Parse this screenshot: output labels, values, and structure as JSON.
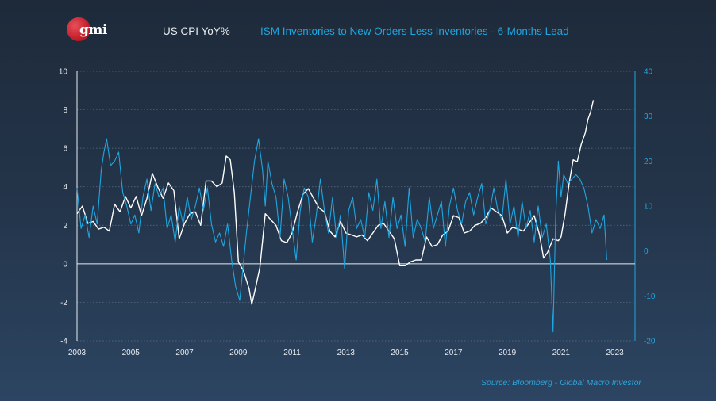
{
  "logo": {
    "text": "gmi"
  },
  "legend": {
    "cpi_label": "US CPI YoY%",
    "ism_label": "ISM Inventories to New Orders Less Inventories - 6-Months Lead"
  },
  "source": "Source: Bloomberg - Global Macro Investor",
  "colors": {
    "cpi": "#ffffff",
    "ism": "#1fa6e0",
    "grid": "#6f7f94",
    "axis_left": "#e8ecf0",
    "axis_right": "#1fa6e0"
  },
  "chart_data": {
    "type": "line",
    "title": "",
    "xlabel": "",
    "ylabel": "",
    "y2label": "",
    "x_ticks": [
      "2003",
      "2005",
      "2007",
      "2009",
      "2011",
      "2013",
      "2015",
      "2017",
      "2019",
      "2021",
      "2023"
    ],
    "xlim": [
      2003,
      2023.75
    ],
    "ylim": [
      -4,
      10
    ],
    "y_ticks": [
      "-4",
      "-2",
      "0",
      "2",
      "4",
      "6",
      "8",
      "10"
    ],
    "y2lim": [
      -20,
      40
    ],
    "y2_ticks": [
      "-20",
      "-10",
      "0",
      "10",
      "20",
      "30",
      "40"
    ],
    "grid": true,
    "legend_position": "top",
    "series": [
      {
        "name": "US CPI YoY%",
        "axis": "left",
        "x": [
          2003.0,
          2003.2,
          2003.4,
          2003.6,
          2003.8,
          2004.0,
          2004.2,
          2004.4,
          2004.6,
          2004.8,
          2005.0,
          2005.2,
          2005.4,
          2005.6,
          2005.8,
          2006.0,
          2006.2,
          2006.4,
          2006.6,
          2006.8,
          2007.0,
          2007.2,
          2007.4,
          2007.6,
          2007.8,
          2008.0,
          2008.2,
          2008.4,
          2008.55,
          2008.7,
          2008.85,
          2009.0,
          2009.2,
          2009.4,
          2009.5,
          2009.6,
          2009.8,
          2010.0,
          2010.2,
          2010.4,
          2010.6,
          2010.8,
          2011.0,
          2011.2,
          2011.4,
          2011.6,
          2011.8,
          2012.0,
          2012.2,
          2012.4,
          2012.6,
          2012.8,
          2013.0,
          2013.2,
          2013.4,
          2013.6,
          2013.8,
          2014.0,
          2014.2,
          2014.4,
          2014.6,
          2014.8,
          2015.0,
          2015.2,
          2015.4,
          2015.6,
          2015.8,
          2016.0,
          2016.2,
          2016.4,
          2016.6,
          2016.8,
          2017.0,
          2017.2,
          2017.4,
          2017.6,
          2017.8,
          2018.0,
          2018.2,
          2018.4,
          2018.6,
          2018.8,
          2019.0,
          2019.2,
          2019.4,
          2019.6,
          2019.8,
          2020.0,
          2020.2,
          2020.35,
          2020.5,
          2020.7,
          2020.9,
          2021.0,
          2021.15,
          2021.3,
          2021.45,
          2021.6,
          2021.75,
          2021.9,
          2022.0,
          2022.1,
          2022.2
        ],
        "values": [
          2.6,
          3.0,
          2.1,
          2.2,
          1.8,
          1.9,
          1.7,
          3.1,
          2.7,
          3.5,
          2.9,
          3.5,
          2.5,
          3.4,
          4.7,
          4.0,
          3.4,
          4.2,
          3.8,
          1.3,
          2.1,
          2.6,
          2.7,
          2.0,
          4.3,
          4.3,
          4.0,
          4.2,
          5.6,
          5.4,
          3.7,
          0.1,
          -0.4,
          -1.3,
          -2.1,
          -1.5,
          -0.2,
          2.6,
          2.3,
          2.0,
          1.2,
          1.1,
          1.6,
          2.7,
          3.6,
          3.9,
          3.4,
          2.9,
          2.7,
          1.7,
          1.4,
          2.2,
          1.6,
          1.5,
          1.4,
          1.5,
          1.2,
          1.6,
          2.0,
          2.1,
          1.7,
          1.3,
          -0.1,
          -0.1,
          0.1,
          0.2,
          0.2,
          1.4,
          0.9,
          1.0,
          1.5,
          1.7,
          2.5,
          2.4,
          1.6,
          1.7,
          2.0,
          2.1,
          2.4,
          2.9,
          2.7,
          2.5,
          1.6,
          1.9,
          1.8,
          1.7,
          2.1,
          2.5,
          1.5,
          0.3,
          0.6,
          1.3,
          1.2,
          1.4,
          2.6,
          4.2,
          5.4,
          5.3,
          6.2,
          6.8,
          7.5,
          7.9,
          8.5
        ]
      },
      {
        "name": "ISM Inventories to New Orders Less Inventories - 6-Months Lead",
        "axis": "right",
        "x": [
          2003.0,
          2003.15,
          2003.3,
          2003.45,
          2003.6,
          2003.75,
          2003.9,
          2004.0,
          2004.1,
          2004.25,
          2004.4,
          2004.55,
          2004.7,
          2004.85,
          2005.0,
          2005.15,
          2005.3,
          2005.45,
          2005.6,
          2005.75,
          2005.9,
          2006.05,
          2006.2,
          2006.35,
          2006.5,
          2006.65,
          2006.8,
          2006.95,
          2007.1,
          2007.25,
          2007.4,
          2007.55,
          2007.7,
          2007.85,
          2008.0,
          2008.15,
          2008.3,
          2008.45,
          2008.6,
          2008.75,
          2008.9,
          2009.05,
          2009.15,
          2009.3,
          2009.45,
          2009.6,
          2009.75,
          2009.9,
          2010.0,
          2010.1,
          2010.25,
          2010.4,
          2010.55,
          2010.7,
          2010.85,
          2011.0,
          2011.15,
          2011.3,
          2011.45,
          2011.6,
          2011.75,
          2011.9,
          2012.05,
          2012.2,
          2012.35,
          2012.5,
          2012.65,
          2012.8,
          2012.95,
          2013.1,
          2013.25,
          2013.4,
          2013.55,
          2013.7,
          2013.85,
          2014.0,
          2014.15,
          2014.3,
          2014.45,
          2014.6,
          2014.75,
          2014.9,
          2015.05,
          2015.2,
          2015.35,
          2015.5,
          2015.65,
          2015.8,
          2015.95,
          2016.1,
          2016.25,
          2016.4,
          2016.55,
          2016.7,
          2016.85,
          2017.0,
          2017.15,
          2017.3,
          2017.45,
          2017.6,
          2017.75,
          2017.9,
          2018.05,
          2018.2,
          2018.35,
          2018.5,
          2018.65,
          2018.8,
          2018.95,
          2019.1,
          2019.25,
          2019.4,
          2019.55,
          2019.7,
          2019.85,
          2020.0,
          2020.15,
          2020.3,
          2020.45,
          2020.6,
          2020.7,
          2020.8,
          2020.9,
          2021.0,
          2021.1,
          2021.25,
          2021.4,
          2021.55,
          2021.7,
          2021.85,
          2022.0,
          2022.15,
          2022.3,
          2022.45,
          2022.6,
          2022.7
        ],
        "values": [
          14,
          5,
          8,
          3,
          10,
          6,
          18,
          22,
          25,
          19,
          20,
          22,
          13,
          10,
          6,
          8,
          4,
          12,
          16,
          9,
          15,
          12,
          14,
          5,
          8,
          2,
          10,
          6,
          12,
          7,
          10,
          14,
          9,
          14,
          6,
          2,
          4,
          1,
          6,
          -2,
          -8,
          -11,
          -5,
          4,
          12,
          20,
          25,
          18,
          10,
          20,
          15,
          12,
          3,
          16,
          12,
          5,
          -2,
          9,
          14,
          12,
          2,
          8,
          16,
          9,
          4,
          12,
          3,
          8,
          -4,
          9,
          12,
          5,
          7,
          3,
          13,
          9,
          16,
          5,
          11,
          3,
          12,
          5,
          8,
          1,
          14,
          3,
          7,
          5,
          2,
          12,
          5,
          8,
          11,
          1,
          10,
          14,
          9,
          6,
          11,
          13,
          8,
          12,
          15,
          6,
          9,
          14,
          9,
          7,
          16,
          6,
          10,
          3,
          11,
          5,
          9,
          2,
          10,
          3,
          6,
          -2,
          -18,
          8,
          20,
          12,
          17,
          15,
          16,
          17,
          16,
          14,
          10,
          4,
          7,
          5,
          8,
          -2
        ]
      }
    ]
  }
}
